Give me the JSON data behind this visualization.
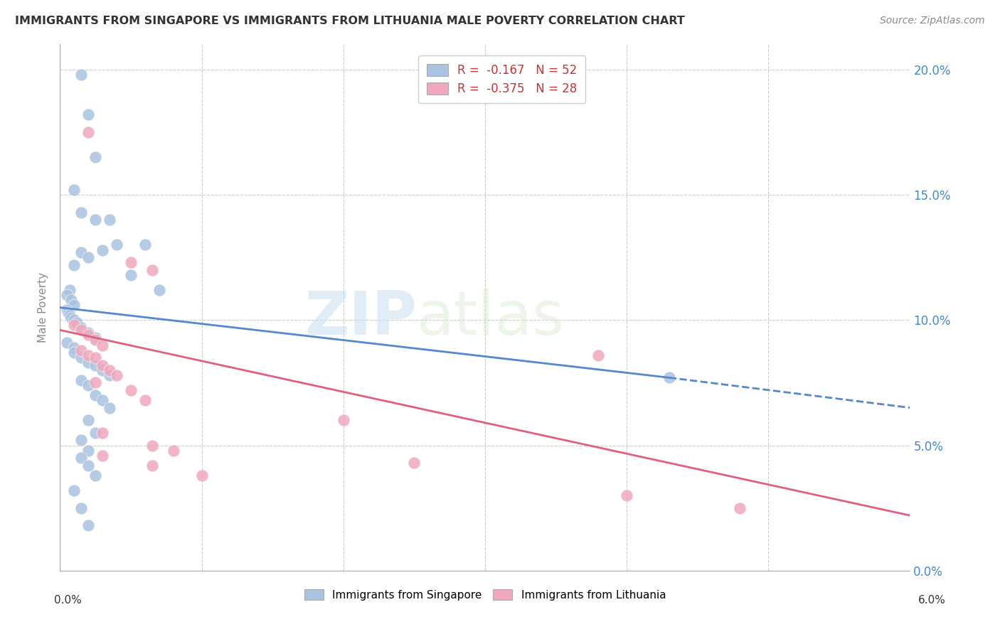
{
  "title": "IMMIGRANTS FROM SINGAPORE VS IMMIGRANTS FROM LITHUANIA MALE POVERTY CORRELATION CHART",
  "source": "Source: ZipAtlas.com",
  "ylabel": "Male Poverty",
  "xlim": [
    0.0,
    0.06
  ],
  "ylim": [
    0.0,
    0.21
  ],
  "singapore_R": -0.167,
  "singapore_N": 52,
  "lithuania_R": -0.375,
  "lithuania_N": 28,
  "singapore_color": "#aac4e0",
  "lithuania_color": "#f0a8bc",
  "singapore_line_color": "#5588cc",
  "lithuania_line_color": "#e06080",
  "singapore_line_solid_end": 0.043,
  "watermark_zip": "ZIP",
  "watermark_atlas": "atlas",
  "singapore_points": [
    [
      0.0015,
      0.198
    ],
    [
      0.002,
      0.182
    ],
    [
      0.0025,
      0.165
    ],
    [
      0.001,
      0.152
    ],
    [
      0.0015,
      0.143
    ],
    [
      0.0035,
      0.14
    ],
    [
      0.006,
      0.13
    ],
    [
      0.003,
      0.128
    ],
    [
      0.005,
      0.118
    ],
    [
      0.007,
      0.112
    ],
    [
      0.0025,
      0.14
    ],
    [
      0.004,
      0.13
    ],
    [
      0.0015,
      0.127
    ],
    [
      0.002,
      0.125
    ],
    [
      0.001,
      0.122
    ],
    [
      0.0007,
      0.112
    ],
    [
      0.0005,
      0.11
    ],
    [
      0.0008,
      0.108
    ],
    [
      0.001,
      0.106
    ],
    [
      0.0005,
      0.104
    ],
    [
      0.0006,
      0.103
    ],
    [
      0.0007,
      0.102
    ],
    [
      0.0008,
      0.101
    ],
    [
      0.001,
      0.1
    ],
    [
      0.0012,
      0.099
    ],
    [
      0.0015,
      0.097
    ],
    [
      0.002,
      0.095
    ],
    [
      0.0025,
      0.093
    ],
    [
      0.0005,
      0.091
    ],
    [
      0.001,
      0.089
    ],
    [
      0.001,
      0.087
    ],
    [
      0.0015,
      0.085
    ],
    [
      0.002,
      0.083
    ],
    [
      0.0025,
      0.082
    ],
    [
      0.003,
      0.08
    ],
    [
      0.0035,
      0.078
    ],
    [
      0.0015,
      0.076
    ],
    [
      0.002,
      0.074
    ],
    [
      0.0025,
      0.07
    ],
    [
      0.003,
      0.068
    ],
    [
      0.0035,
      0.065
    ],
    [
      0.002,
      0.06
    ],
    [
      0.0025,
      0.055
    ],
    [
      0.0015,
      0.052
    ],
    [
      0.002,
      0.048
    ],
    [
      0.0015,
      0.045
    ],
    [
      0.002,
      0.042
    ],
    [
      0.0025,
      0.038
    ],
    [
      0.001,
      0.032
    ],
    [
      0.0015,
      0.025
    ],
    [
      0.002,
      0.018
    ],
    [
      0.043,
      0.077
    ]
  ],
  "lithuania_points": [
    [
      0.002,
      0.175
    ],
    [
      0.005,
      0.123
    ],
    [
      0.0065,
      0.12
    ],
    [
      0.001,
      0.098
    ],
    [
      0.0015,
      0.096
    ],
    [
      0.002,
      0.094
    ],
    [
      0.0025,
      0.092
    ],
    [
      0.003,
      0.09
    ],
    [
      0.0015,
      0.088
    ],
    [
      0.002,
      0.086
    ],
    [
      0.0025,
      0.085
    ],
    [
      0.003,
      0.082
    ],
    [
      0.0035,
      0.08
    ],
    [
      0.004,
      0.078
    ],
    [
      0.0025,
      0.075
    ],
    [
      0.005,
      0.072
    ],
    [
      0.006,
      0.068
    ],
    [
      0.003,
      0.055
    ],
    [
      0.0065,
      0.05
    ],
    [
      0.008,
      0.048
    ],
    [
      0.003,
      0.046
    ],
    [
      0.0065,
      0.042
    ],
    [
      0.01,
      0.038
    ],
    [
      0.038,
      0.086
    ],
    [
      0.02,
      0.06
    ],
    [
      0.025,
      0.043
    ],
    [
      0.04,
      0.03
    ],
    [
      0.048,
      0.025
    ]
  ]
}
